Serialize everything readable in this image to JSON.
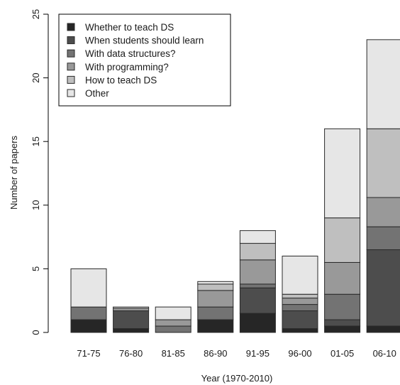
{
  "chart_data": {
    "type": "bar",
    "stacked": true,
    "title": "",
    "xlabel": "Year (1970-2010)",
    "ylabel": "Number of papers",
    "ylim": [
      0,
      25
    ],
    "yticks": [
      0,
      5,
      10,
      15,
      20,
      25
    ],
    "legend_position": "top-left",
    "categories": [
      "71-75",
      "76-80",
      "81-85",
      "86-90",
      "91-95",
      "96-00",
      "01-05",
      "06-10"
    ],
    "series": [
      {
        "name": "Whether to teach DS",
        "color": "#262626",
        "values": [
          1,
          0.3,
          0,
          1,
          1.5,
          0.3,
          0.5,
          0.5
        ]
      },
      {
        "name": "When students should learn",
        "color": "#4d4d4d",
        "values": [
          0,
          1.4,
          0,
          0,
          2.0,
          1.4,
          0.5,
          6.0
        ]
      },
      {
        "name": "With data structures?",
        "color": "#737373",
        "values": [
          1,
          0,
          0.5,
          1,
          0.3,
          0.5,
          2.0,
          1.8
        ]
      },
      {
        "name": "With programming?",
        "color": "#999999",
        "values": [
          0,
          0.2,
          0.5,
          1.3,
          1.9,
          0.5,
          2.5,
          2.3
        ]
      },
      {
        "name": "How to teach DS",
        "color": "#bfbfbf",
        "values": [
          0,
          0,
          0,
          0.5,
          1.3,
          0.3,
          3.5,
          5.4
        ]
      },
      {
        "name": "Other",
        "color": "#e6e6e6",
        "values": [
          3,
          0.1,
          1,
          0.2,
          1.0,
          3.0,
          7.0,
          7.0
        ]
      }
    ]
  }
}
